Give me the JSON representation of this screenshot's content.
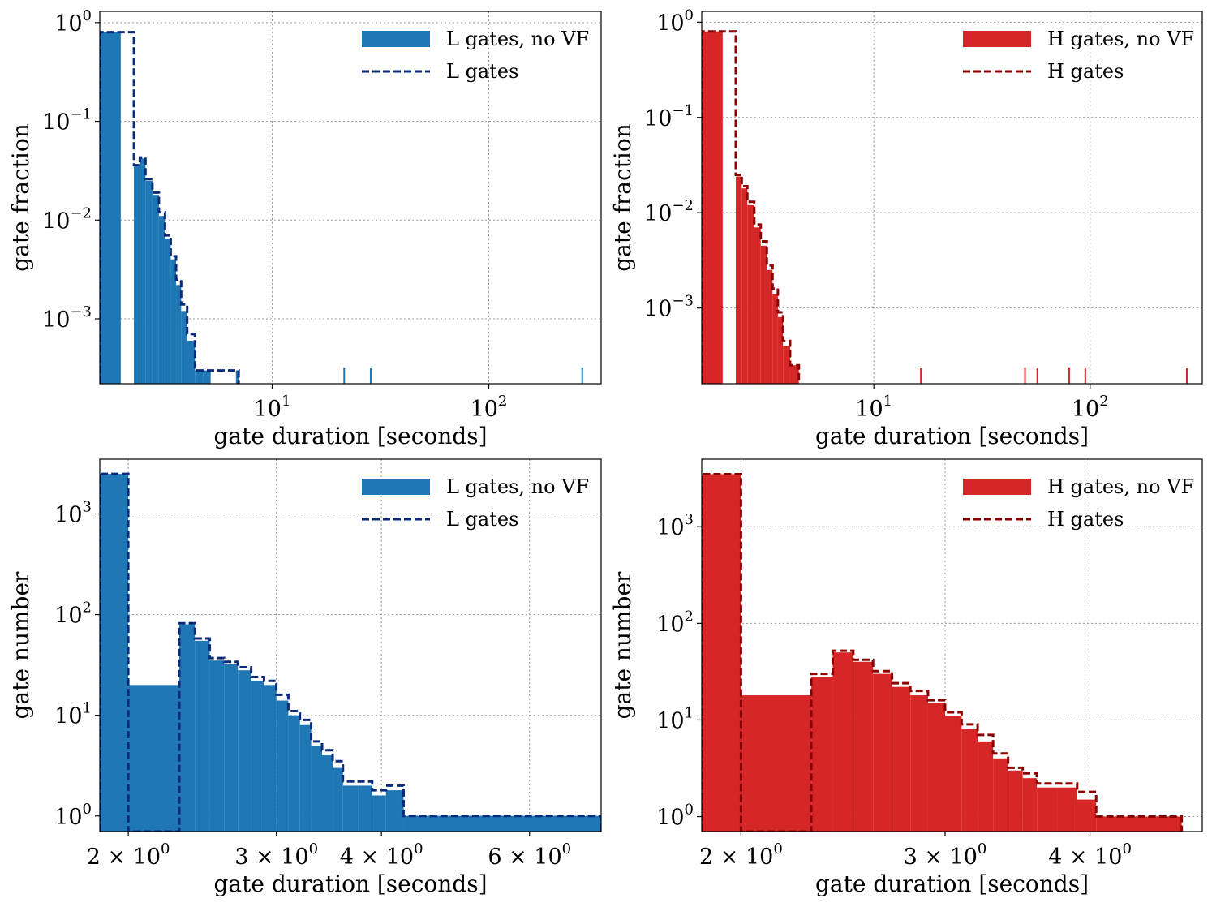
{
  "colors": {
    "L_fill": "#1f77b4",
    "L_line": "#0a2a7a",
    "H_fill": "#d62728",
    "H_line": "#8b0000",
    "grid": "#9a9a9a"
  },
  "chart_data": [
    {
      "id": "top-left",
      "type": "histogram",
      "xscale": "log",
      "yscale": "log",
      "xlabel": "gate duration [seconds]",
      "ylabel": "gate fraction",
      "xlim": [
        1.6,
        330
      ],
      "ylim": [
        0.00022,
        1.3
      ],
      "xticks": [
        {
          "v": 10,
          "base": "10",
          "exp": "1"
        },
        {
          "v": 100,
          "base": "10",
          "exp": "2"
        }
      ],
      "yticks": [
        {
          "v": 1,
          "base": "10",
          "exp": "0"
        },
        {
          "v": 0.1,
          "base": "10",
          "exp": "−1"
        },
        {
          "v": 0.01,
          "base": "10",
          "exp": "−2"
        },
        {
          "v": 0.001,
          "base": "10",
          "exp": "−3"
        }
      ],
      "legend_position": "top-right",
      "series": [
        {
          "name": "L gates, no VF",
          "style": "filled",
          "color_key": "L_fill",
          "bins": [
            [
              1.6,
              2.0,
              0.8
            ],
            [
              2.3,
              2.45,
              0.035
            ],
            [
              2.45,
              2.6,
              0.042
            ],
            [
              2.6,
              2.8,
              0.025
            ],
            [
              2.8,
              3.0,
              0.018
            ],
            [
              3.0,
              3.2,
              0.011
            ],
            [
              3.2,
              3.4,
              0.0065
            ],
            [
              3.4,
              3.6,
              0.004
            ],
            [
              3.6,
              3.8,
              0.0022
            ],
            [
              3.8,
              4.05,
              0.0012
            ],
            [
              4.05,
              4.4,
              0.0006
            ],
            [
              4.4,
              4.8,
              0.0003
            ],
            [
              4.8,
              5.2,
              0.0003
            ],
            [
              6.8,
              7.0,
              0.0003
            ]
          ]
        },
        {
          "name": "L gates",
          "style": "dashed",
          "color_key": "L_line",
          "bins": [
            [
              1.6,
              2.0,
              0.8
            ],
            [
              2.3,
              2.45,
              0.036
            ],
            [
              2.45,
              2.6,
              0.043
            ],
            [
              2.6,
              2.8,
              0.026
            ],
            [
              2.8,
              3.0,
              0.019
            ],
            [
              3.0,
              3.2,
              0.012
            ],
            [
              3.2,
              3.4,
              0.007
            ],
            [
              3.4,
              3.6,
              0.0043
            ],
            [
              3.6,
              3.8,
              0.0025
            ],
            [
              3.8,
              4.05,
              0.0014
            ],
            [
              4.05,
              4.4,
              0.0007
            ],
            [
              4.4,
              4.8,
              0.0003
            ],
            [
              4.8,
              5.2,
              0.0003
            ],
            [
              6.8,
              7.0,
              0.0003
            ]
          ]
        }
      ],
      "spikes": [
        21.5,
        28.5,
        270
      ]
    },
    {
      "id": "top-right",
      "type": "histogram",
      "xscale": "log",
      "yscale": "log",
      "xlabel": "gate duration [seconds]",
      "ylabel": "gate fraction",
      "xlim": [
        1.6,
        330
      ],
      "ylim": [
        0.00016,
        1.3
      ],
      "xticks": [
        {
          "v": 10,
          "base": "10",
          "exp": "1"
        },
        {
          "v": 100,
          "base": "10",
          "exp": "2"
        }
      ],
      "yticks": [
        {
          "v": 1,
          "base": "10",
          "exp": "0"
        },
        {
          "v": 0.1,
          "base": "10",
          "exp": "−1"
        },
        {
          "v": 0.01,
          "base": "10",
          "exp": "−2"
        },
        {
          "v": 0.001,
          "base": "10",
          "exp": "−3"
        }
      ],
      "legend_position": "top-right",
      "series": [
        {
          "name": "H gates, no VF",
          "style": "filled",
          "color_key": "H_fill",
          "bins": [
            [
              1.6,
              2.0,
              0.8
            ],
            [
              2.3,
              2.45,
              0.024
            ],
            [
              2.45,
              2.6,
              0.018
            ],
            [
              2.6,
              2.8,
              0.012
            ],
            [
              2.8,
              3.0,
              0.007
            ],
            [
              3.0,
              3.2,
              0.0045
            ],
            [
              3.2,
              3.4,
              0.0025
            ],
            [
              3.4,
              3.6,
              0.0014
            ],
            [
              3.6,
              3.8,
              0.0008
            ],
            [
              3.8,
              4.1,
              0.0004
            ],
            [
              4.1,
              4.5,
              0.00025
            ]
          ]
        },
        {
          "name": "H gates",
          "style": "dashed",
          "color_key": "H_line",
          "bins": [
            [
              1.6,
              2.0,
              0.8
            ],
            [
              2.3,
              2.45,
              0.025
            ],
            [
              2.45,
              2.6,
              0.019
            ],
            [
              2.6,
              2.8,
              0.013
            ],
            [
              2.8,
              3.0,
              0.0075
            ],
            [
              3.0,
              3.2,
              0.005
            ],
            [
              3.2,
              3.4,
              0.0028
            ],
            [
              3.4,
              3.6,
              0.0016
            ],
            [
              3.6,
              3.8,
              0.0009
            ],
            [
              3.8,
              4.1,
              0.00045
            ],
            [
              4.1,
              4.5,
              0.00025
            ]
          ]
        }
      ],
      "spikes": [
        16.5,
        50,
        57,
        80,
        95,
        280
      ]
    },
    {
      "id": "bottom-left",
      "type": "histogram",
      "xscale": "log",
      "yscale": "log",
      "xlabel": "gate duration [seconds]",
      "ylabel": "gate number",
      "xlim": [
        1.85,
        7.3
      ],
      "ylim": [
        0.7,
        3500
      ],
      "xticks": [
        {
          "v": 2,
          "base": "2 × 10",
          "exp": "0"
        },
        {
          "v": 3,
          "base": "3 × 10",
          "exp": "0"
        },
        {
          "v": 4,
          "base": "4 × 10",
          "exp": "0"
        },
        {
          "v": 6,
          "base": "6 × 10",
          "exp": "0"
        }
      ],
      "yticks": [
        {
          "v": 1000,
          "base": "10",
          "exp": "3"
        },
        {
          "v": 100,
          "base": "10",
          "exp": "2"
        },
        {
          "v": 10,
          "base": "10",
          "exp": "1"
        },
        {
          "v": 1,
          "base": "10",
          "exp": "0"
        }
      ],
      "legend_position": "top-right",
      "series": [
        {
          "name": "L gates, no VF",
          "style": "filled",
          "color_key": "L_fill",
          "bins": [
            [
              1.85,
              2.0,
              2500
            ],
            [
              2.0,
              2.3,
              20
            ],
            [
              2.3,
              2.4,
              80
            ],
            [
              2.4,
              2.5,
              55
            ],
            [
              2.5,
              2.6,
              35
            ],
            [
              2.6,
              2.7,
              32
            ],
            [
              2.7,
              2.8,
              28
            ],
            [
              2.8,
              2.9,
              22
            ],
            [
              2.9,
              3.0,
              20
            ],
            [
              3.0,
              3.1,
              14
            ],
            [
              3.1,
              3.2,
              10
            ],
            [
              3.2,
              3.3,
              8
            ],
            [
              3.3,
              3.4,
              5
            ],
            [
              3.4,
              3.5,
              4
            ],
            [
              3.5,
              3.6,
              3
            ],
            [
              3.6,
              3.75,
              2
            ],
            [
              3.75,
              3.9,
              2
            ],
            [
              3.9,
              4.05,
              1.6
            ],
            [
              4.05,
              4.25,
              1.8
            ],
            [
              4.25,
              7.3,
              1
            ]
          ]
        },
        {
          "name": "L gates",
          "style": "dashed",
          "color_key": "L_line",
          "bins": [
            [
              1.85,
              2.0,
              2500
            ],
            [
              2.0,
              2.3,
              0.7
            ],
            [
              2.3,
              2.4,
              82
            ],
            [
              2.4,
              2.5,
              58
            ],
            [
              2.5,
              2.6,
              37
            ],
            [
              2.6,
              2.7,
              34
            ],
            [
              2.7,
              2.8,
              30
            ],
            [
              2.8,
              2.9,
              24
            ],
            [
              2.9,
              3.0,
              22
            ],
            [
              3.0,
              3.1,
              16
            ],
            [
              3.1,
              3.2,
              11
            ],
            [
              3.2,
              3.3,
              9
            ],
            [
              3.3,
              3.4,
              5.5
            ],
            [
              3.4,
              3.5,
              4.5
            ],
            [
              3.5,
              3.6,
              3.5
            ],
            [
              3.6,
              3.75,
              2.2
            ],
            [
              3.75,
              3.9,
              2.2
            ],
            [
              3.9,
              4.05,
              1.8
            ],
            [
              4.05,
              4.25,
              2
            ],
            [
              4.25,
              7.3,
              1
            ]
          ]
        }
      ]
    },
    {
      "id": "bottom-right",
      "type": "histogram",
      "xscale": "log",
      "yscale": "log",
      "xlabel": "gate duration [seconds]",
      "ylabel": "gate number",
      "xlim": [
        1.85,
        5.0
      ],
      "ylim": [
        0.7,
        5000
      ],
      "xticks": [
        {
          "v": 2,
          "base": "2 × 10",
          "exp": "0"
        },
        {
          "v": 3,
          "base": "3 × 10",
          "exp": "0"
        },
        {
          "v": 4,
          "base": "4 × 10",
          "exp": "0"
        }
      ],
      "yticks": [
        {
          "v": 1000,
          "base": "10",
          "exp": "3"
        },
        {
          "v": 100,
          "base": "10",
          "exp": "2"
        },
        {
          "v": 10,
          "base": "10",
          "exp": "1"
        },
        {
          "v": 1,
          "base": "10",
          "exp": "0"
        }
      ],
      "legend_position": "top-right",
      "series": [
        {
          "name": "H gates, no VF",
          "style": "filled",
          "color_key": "H_fill",
          "bins": [
            [
              1.85,
              2.0,
              3500
            ],
            [
              2.0,
              2.3,
              18
            ],
            [
              2.3,
              2.4,
              28
            ],
            [
              2.4,
              2.5,
              50
            ],
            [
              2.5,
              2.6,
              40
            ],
            [
              2.6,
              2.7,
              30
            ],
            [
              2.7,
              2.8,
              22
            ],
            [
              2.8,
              2.9,
              18
            ],
            [
              2.9,
              3.0,
              15
            ],
            [
              3.0,
              3.1,
              11
            ],
            [
              3.1,
              3.2,
              8
            ],
            [
              3.2,
              3.3,
              6
            ],
            [
              3.3,
              3.4,
              4
            ],
            [
              3.4,
              3.5,
              3
            ],
            [
              3.5,
              3.6,
              2.5
            ],
            [
              3.6,
              3.75,
              2
            ],
            [
              3.75,
              3.9,
              2
            ],
            [
              3.9,
              4.05,
              1.5
            ],
            [
              4.05,
              4.8,
              1
            ]
          ]
        },
        {
          "name": "H gates",
          "style": "dashed",
          "color_key": "H_line",
          "bins": [
            [
              1.85,
              2.0,
              3500
            ],
            [
              2.0,
              2.3,
              0.7
            ],
            [
              2.3,
              2.4,
              30
            ],
            [
              2.4,
              2.5,
              52
            ],
            [
              2.5,
              2.6,
              42
            ],
            [
              2.6,
              2.7,
              32
            ],
            [
              2.7,
              2.8,
              24
            ],
            [
              2.8,
              2.9,
              20
            ],
            [
              2.9,
              3.0,
              16
            ],
            [
              3.0,
              3.1,
              12
            ],
            [
              3.1,
              3.2,
              9
            ],
            [
              3.2,
              3.3,
              7
            ],
            [
              3.3,
              3.4,
              4.5
            ],
            [
              3.4,
              3.5,
              3.2
            ],
            [
              3.5,
              3.6,
              2.8
            ],
            [
              3.6,
              3.75,
              2.2
            ],
            [
              3.75,
              3.9,
              2.2
            ],
            [
              3.9,
              4.05,
              1.8
            ],
            [
              4.05,
              4.8,
              1
            ]
          ]
        }
      ]
    }
  ]
}
